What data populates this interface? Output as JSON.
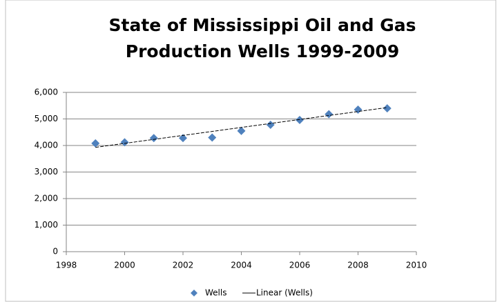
{
  "chart_data": {
    "type": "scatter",
    "title": "State of Mississippi Oil and Gas Production Wells 1999-2009",
    "series": [
      {
        "name": "Wells",
        "color": "#4f81bd",
        "x": [
          1999,
          2000,
          2001,
          2002,
          2003,
          2004,
          2005,
          2006,
          2007,
          2008,
          2009
        ],
        "values": [
          4080,
          4120,
          4280,
          4280,
          4300,
          4550,
          4780,
          4960,
          5180,
          5350,
          5400
        ]
      }
    ],
    "trendline": {
      "name": "Linear (Wells)",
      "color": "#000000",
      "x": [
        1999,
        2009
      ],
      "values": [
        3930,
        5430
      ]
    },
    "xlim": [
      1998,
      2010
    ],
    "xticks": [
      1998,
      2000,
      2002,
      2004,
      2006,
      2008,
      2010
    ],
    "ylim": [
      0,
      6000
    ],
    "yticks": [
      0,
      {
        "value": 1000,
        "label": "1,000"
      },
      {
        "value": 2000,
        "label": "2,000"
      },
      {
        "value": 3000,
        "label": "3,000"
      },
      {
        "value": 4000,
        "label": "4,000"
      },
      {
        "value": 5000,
        "label": "5,000"
      },
      {
        "value": 6000,
        "label": "6,000"
      }
    ],
    "grid": true,
    "legend": "bottom"
  }
}
